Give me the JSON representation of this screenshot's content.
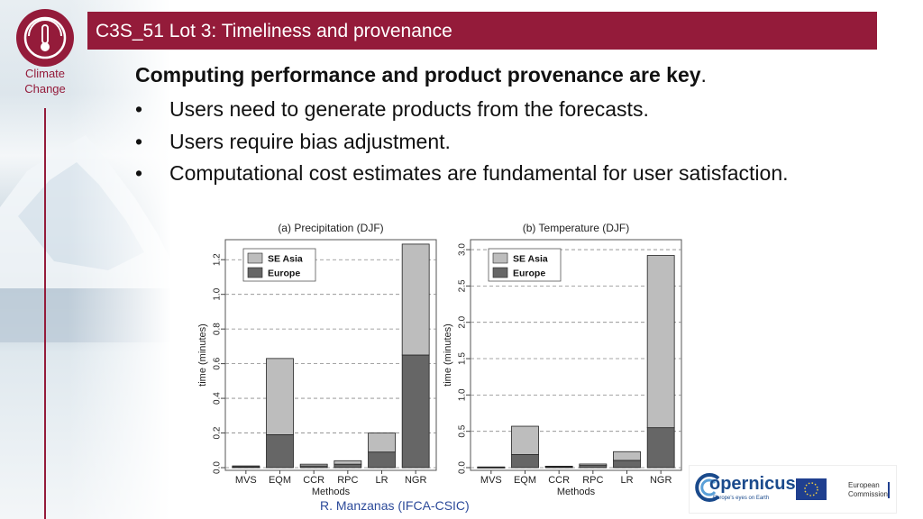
{
  "slide": {
    "brand_label_line1": "Climate",
    "brand_label_line2": "Change",
    "title": "C3S_51 Lot 3: Timeliness and provenance",
    "headline": "Computing performance and product provenance are key",
    "headline_end": ".",
    "bullet_marker": "•",
    "bullets": [
      "Users need to generate products from the forecasts.",
      "Users require bias adjustment.",
      "Computational cost estimates are fundamental for user satisfaction."
    ],
    "footer": "R. Manzanas  (IFCA-CSIC)",
    "copernicus_name": "opernicus",
    "copernicus_tagline": "Europe's eyes on Earth",
    "ec_line1": "European",
    "ec_line2": "Commission"
  },
  "colors": {
    "brand": "#941b3a",
    "europe": "#666666",
    "se_asia": "#bdbdbd",
    "footer_text": "#2c4a9a"
  },
  "icons": [
    "thermometer-icon",
    "copernicus-logo",
    "eu-flag-icon"
  ],
  "chart_data": [
    {
      "type": "bar",
      "stacked": true,
      "title": "(a) Precipitation (DJF)",
      "xlabel": "Methods",
      "ylabel": "time (minutes)",
      "categories": [
        "MVS",
        "EQM",
        "CCR",
        "RPC",
        "LR",
        "NGR"
      ],
      "series": [
        {
          "name": "Europe",
          "values": [
            0.005,
            0.19,
            0.01,
            0.02,
            0.09,
            0.65
          ]
        },
        {
          "name": "SE Asia",
          "values": [
            0.005,
            0.44,
            0.01,
            0.02,
            0.11,
            0.64
          ]
        }
      ],
      "ylim": [
        0,
        1.3
      ],
      "yticks": [
        0.0,
        0.2,
        0.4,
        0.6,
        0.8,
        1.0,
        1.2
      ],
      "ytick_labels": [
        "0.0",
        "0.2",
        "0.4",
        "0.6",
        "0.8",
        "1.0",
        "1.2"
      ],
      "grid": "horizontal dashed",
      "legend_position": "top-left"
    },
    {
      "type": "bar",
      "stacked": true,
      "title": "(b) Temperature  (DJF)",
      "xlabel": "Methods",
      "ylabel": "time (minutes)",
      "categories": [
        "MVS",
        "EQM",
        "CCR",
        "RPC",
        "LR",
        "NGR"
      ],
      "series": [
        {
          "name": "Europe",
          "values": [
            0.005,
            0.18,
            0.015,
            0.03,
            0.1,
            0.55
          ]
        },
        {
          "name": "SE Asia",
          "values": [
            0.005,
            0.39,
            0.005,
            0.02,
            0.12,
            2.37
          ]
        }
      ],
      "ylim": [
        0,
        3.1
      ],
      "yticks": [
        0.0,
        0.5,
        1.0,
        1.5,
        2.0,
        2.5,
        3.0
      ],
      "ytick_labels": [
        "0.0",
        "0.5",
        "1.0",
        "1.5",
        "2.0",
        "2.5",
        "3.0"
      ],
      "grid": "horizontal dashed",
      "legend_position": "top-left"
    }
  ]
}
